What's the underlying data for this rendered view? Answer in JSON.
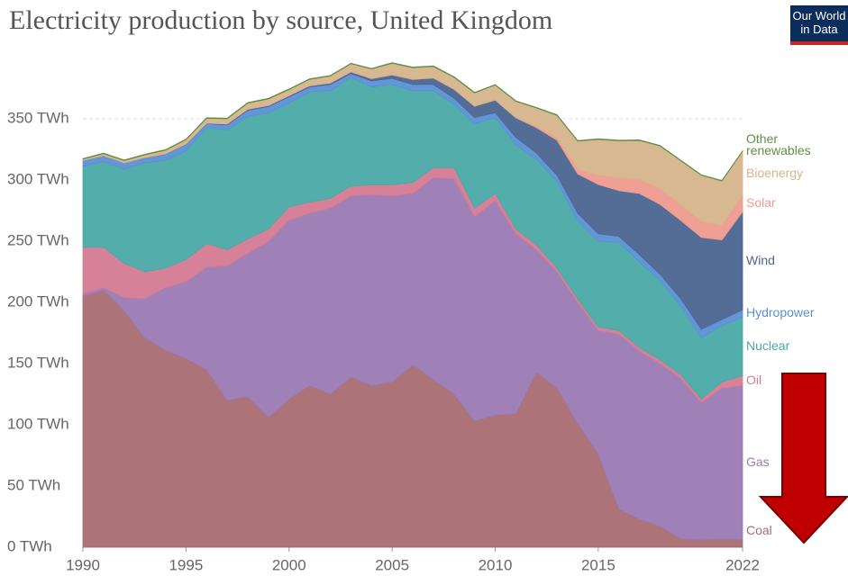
{
  "chart_data": {
    "type": "stacked_area",
    "title": "Electricity production by source, United Kingdom",
    "logo": [
      "Our World",
      "in Data"
    ],
    "x": [
      1990,
      1991,
      1992,
      1993,
      1994,
      1995,
      1996,
      1997,
      1998,
      1999,
      2000,
      2001,
      2002,
      2003,
      2004,
      2005,
      2006,
      2007,
      2008,
      2009,
      2010,
      2011,
      2012,
      2013,
      2014,
      2015,
      2016,
      2017,
      2018,
      2019,
      2020,
      2021,
      2022
    ],
    "xlim": [
      1990,
      2022
    ],
    "xticks": [
      1990,
      1995,
      2000,
      2005,
      2010,
      2015,
      2022
    ],
    "ylim": [
      0,
      400
    ],
    "yticks": [
      {
        "value": 0,
        "label": "0 TWh"
      },
      {
        "value": 50,
        "label": "50 TWh"
      },
      {
        "value": 100,
        "label": "100 TWh"
      },
      {
        "value": 150,
        "label": "150 TWh"
      },
      {
        "value": 200,
        "label": "200 TWh"
      },
      {
        "value": 250,
        "label": "250 TWh"
      },
      {
        "value": 300,
        "label": "300 TWh"
      },
      {
        "value": 350,
        "label": "350 TWh"
      }
    ],
    "grid": true,
    "series": [
      {
        "name": "Coal",
        "color": "#a86b72",
        "values": [
          205,
          210,
          193,
          171,
          161,
          154,
          145,
          120,
          123,
          106,
          121,
          132,
          125,
          139,
          132,
          135,
          149,
          137,
          125,
          103,
          108,
          109,
          143,
          130,
          101,
          76,
          31,
          23,
          17,
          7,
          6,
          7,
          6
        ]
      },
      {
        "name": "Gas",
        "color": "#9a7ab4",
        "values": [
          2,
          2,
          11,
          32,
          51,
          63,
          84,
          110,
          117,
          144,
          146,
          141,
          152,
          148,
          156,
          152,
          140,
          165,
          176,
          167,
          175,
          147,
          100,
          95,
          99,
          101,
          143,
          137,
          133,
          131,
          112,
          123,
          126
        ]
      },
      {
        "name": "Oil",
        "color": "#d47a92",
        "values": [
          38,
          33,
          28,
          22,
          16,
          18,
          19,
          13,
          12,
          10,
          11,
          9,
          8,
          8,
          8,
          9,
          9,
          8,
          9,
          7,
          6,
          4,
          4,
          3,
          3,
          3,
          3,
          3,
          3,
          3,
          3,
          5,
          8
        ]
      },
      {
        "name": "Nuclear",
        "color": "#4aa9a5",
        "values": [
          66,
          70,
          77,
          89,
          88,
          89,
          95,
          98,
          100,
          95,
          85,
          90,
          88,
          89,
          80,
          82,
          75,
          63,
          52,
          69,
          62,
          69,
          70,
          71,
          64,
          70,
          72,
          70,
          65,
          56,
          50,
          46,
          48
        ]
      },
      {
        "name": "Hydropower",
        "color": "#5b8fd6",
        "values": [
          5,
          5,
          5,
          4,
          5,
          5,
          3,
          4,
          5,
          5,
          5,
          4,
          5,
          3,
          5,
          5,
          5,
          5,
          5,
          5,
          4,
          6,
          5,
          5,
          6,
          6,
          5,
          6,
          5,
          6,
          7,
          5,
          6
        ]
      },
      {
        "name": "Wind",
        "color": "#4a6591",
        "values": [
          0,
          0,
          0,
          0.2,
          0.3,
          0.4,
          0.5,
          0.7,
          0.9,
          0.9,
          0.9,
          1,
          1.3,
          1.3,
          1.9,
          2.9,
          4.2,
          5.3,
          7.1,
          9.3,
          10.3,
          15.8,
          20.7,
          28.4,
          32,
          40.3,
          37.3,
          50,
          57,
          64,
          75,
          65,
          80
        ]
      },
      {
        "name": "Solar",
        "color": "#ef9a8f",
        "values": [
          0,
          0,
          0,
          0,
          0,
          0,
          0,
          0,
          0,
          0,
          0,
          0,
          0,
          0,
          0,
          0,
          0,
          0,
          0,
          0,
          0.04,
          0.2,
          1.4,
          2,
          4,
          7.5,
          10.4,
          11.5,
          12.7,
          12.7,
          13.2,
          12.1,
          13.3
        ]
      },
      {
        "name": "Bioenergy",
        "color": "#d6b48a",
        "values": [
          1,
          1.5,
          1.8,
          2.3,
          3,
          3.5,
          3.9,
          4.3,
          4.9,
          5.3,
          5,
          5.2,
          5.6,
          6.6,
          7.8,
          9.4,
          9.6,
          9.4,
          9.8,
          10.8,
          12.2,
          13.2,
          14.7,
          18.4,
          22.8,
          29.4,
          30.3,
          31.8,
          35,
          36,
          37.6,
          36,
          36
        ]
      },
      {
        "name": "Other renewables",
        "color": "#5e8f45",
        "values": [
          0.5,
          0.5,
          0.5,
          0.5,
          0.5,
          0.5,
          0.5,
          0.5,
          0.5,
          0.5,
          0.5,
          0.5,
          0.5,
          0.5,
          0.5,
          0.5,
          0.5,
          0.5,
          0.5,
          0.5,
          0.5,
          0.5,
          0.5,
          0.5,
          0.5,
          0.5,
          0.5,
          0.5,
          0.5,
          0.5,
          0.5,
          0.5,
          0.5
        ]
      }
    ]
  }
}
